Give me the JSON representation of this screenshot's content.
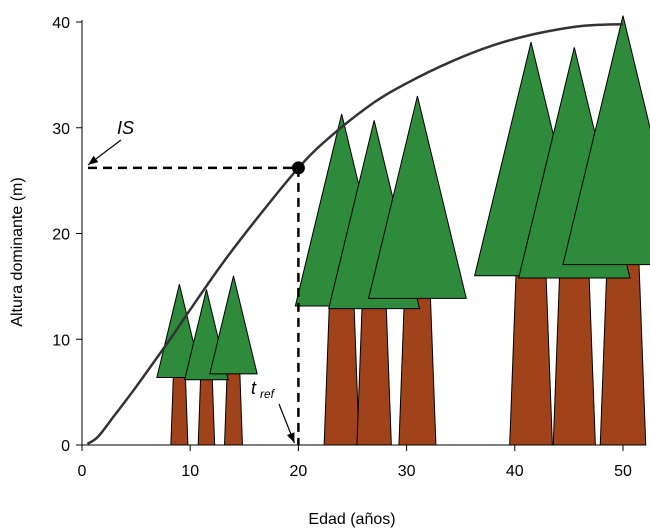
{
  "chart_data": {
    "type": "line",
    "xlabel": "Edad (años)",
    "ylabel": "Altura dominante (m)",
    "xlim": [
      0,
      50
    ],
    "ylim": [
      0,
      40
    ],
    "x_ticks": [
      0,
      10,
      20,
      30,
      40,
      50
    ],
    "y_ticks": [
      0,
      10,
      20,
      30,
      40
    ],
    "grid": false,
    "legend": "none",
    "series": [
      {
        "x": [
          0.5,
          1.5,
          3,
          5,
          8,
          10,
          13,
          16,
          20,
          23,
          27,
          30,
          34,
          38,
          42,
          46,
          50
        ],
        "y": [
          0.1,
          0.8,
          2.8,
          5.5,
          9.8,
          12.8,
          17.2,
          21.2,
          26.2,
          29.2,
          32.4,
          34.2,
          36.2,
          37.8,
          38.9,
          39.6,
          39.8
        ],
        "color": "#333333"
      }
    ],
    "reference_point": {
      "x": 20,
      "y": 26.2
    },
    "annotations": {
      "site_index": "IS",
      "t_ref_main": "t",
      "t_ref_sub": "ref"
    },
    "tree_groups": [
      {
        "ages": [
          9,
          11.5,
          14
        ],
        "heights": [
          15.2,
          14.7,
          16.0
        ]
      },
      {
        "ages": [
          24,
          27,
          31
        ],
        "heights": [
          31.3,
          30.7,
          33.0
        ]
      },
      {
        "ages": [
          41.5,
          45.5,
          50
        ],
        "heights": [
          38.1,
          37.6,
          40.6
        ]
      }
    ],
    "colors": {
      "foliage": "#2E8B3C",
      "trunk": "#A0431A",
      "outline": "#000000",
      "curve": "#333333"
    }
  }
}
